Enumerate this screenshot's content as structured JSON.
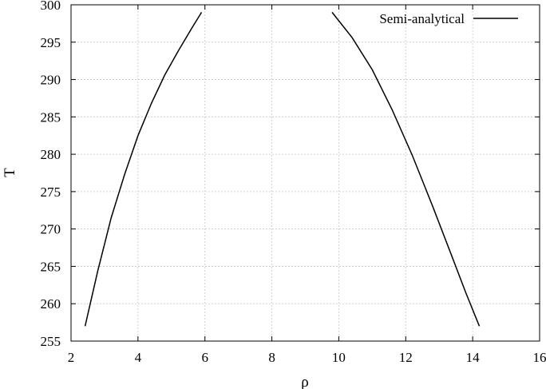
{
  "chart_data": {
    "type": "line",
    "title": "",
    "xlabel": "ρ",
    "ylabel": "T",
    "xlim": [
      2,
      16
    ],
    "ylim": [
      255,
      300
    ],
    "xticks": [
      2,
      4,
      6,
      8,
      10,
      12,
      14,
      16
    ],
    "yticks": [
      255,
      260,
      265,
      270,
      275,
      280,
      285,
      290,
      295,
      300
    ],
    "grid": true,
    "legend_position": "top-right",
    "series": [
      {
        "name": "Semi-analytical",
        "color": "#000000",
        "segments": [
          [
            [
              2.42,
              257
            ],
            [
              2.8,
              264.4
            ],
            [
              3.2,
              271.5
            ],
            [
              3.6,
              277.3
            ],
            [
              4.0,
              282.5
            ],
            [
              4.4,
              286.8
            ],
            [
              4.8,
              290.6
            ],
            [
              5.2,
              293.8
            ],
            [
              5.6,
              296.8
            ],
            [
              5.9,
              299
            ]
          ],
          [
            [
              9.8,
              299
            ],
            [
              10.4,
              295.6
            ],
            [
              11.0,
              291.3
            ],
            [
              11.6,
              285.9
            ],
            [
              12.2,
              279.8
            ],
            [
              12.8,
              273.1
            ],
            [
              13.4,
              266.1
            ],
            [
              13.8,
              261.4
            ],
            [
              14.2,
              257
            ]
          ]
        ]
      }
    ]
  }
}
